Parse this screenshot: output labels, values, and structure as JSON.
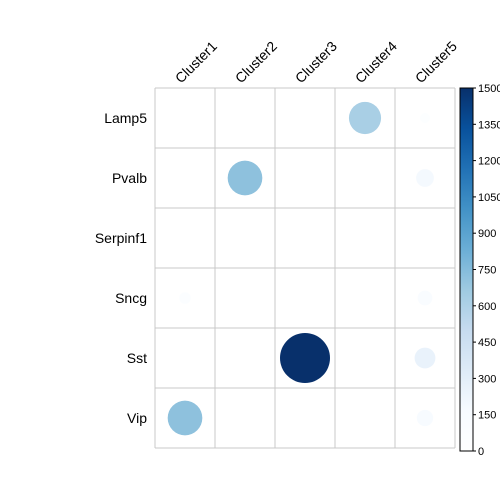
{
  "chart_data": {
    "type": "heatmap",
    "rows": [
      "Lamp5",
      "Pvalb",
      "Serpinf1",
      "Sncg",
      "Sst",
      "Vip"
    ],
    "columns": [
      "Cluster1",
      "Cluster2",
      "Cluster3",
      "Cluster4",
      "Cluster5"
    ],
    "values": [
      [
        0,
        0,
        0,
        620,
        60
      ],
      [
        0,
        720,
        0,
        0,
        190
      ],
      [
        10,
        0,
        0,
        0,
        5
      ],
      [
        80,
        0,
        0,
        0,
        130
      ],
      [
        0,
        0,
        1500,
        0,
        260
      ],
      [
        720,
        0,
        0,
        0,
        160
      ]
    ],
    "colorbar": {
      "range": [
        0,
        1500
      ],
      "ticks": [
        "0",
        "150",
        "300",
        "450",
        "600",
        "750",
        "900",
        "1050",
        "1200",
        "1350",
        "1500"
      ],
      "colors": [
        "#ffffff",
        "#f7fbff",
        "#deebf7",
        "#c6dbef",
        "#9ecae1",
        "#6baed6",
        "#4292c6",
        "#2171b5",
        "#08519c",
        "#08306b"
      ]
    },
    "grid": true,
    "legend_position": "right"
  }
}
